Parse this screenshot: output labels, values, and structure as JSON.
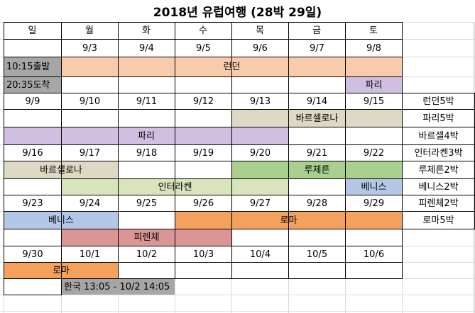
{
  "title": "2018년 유럽여행 (28박 29일)",
  "weekdays": [
    "일",
    "월",
    "화",
    "수",
    "목",
    "금",
    "토"
  ],
  "colors": {
    "arrival": "#a6a6a6",
    "london": "#f8cbad",
    "paris": "#d0bfe0",
    "barcelona": "#ddd9c4",
    "interlaken": "#d8e4bc",
    "lucerne": "#a9d08e",
    "venice": "#b4c7e7",
    "florence": "#da9694",
    "rome": "#f4a15d"
  },
  "cells": [
    {
      "row": 2,
      "c1": 1,
      "c2": 1,
      "text": "9/3"
    },
    {
      "row": 2,
      "c1": 2,
      "c2": 2,
      "text": "9/4"
    },
    {
      "row": 2,
      "c1": 3,
      "c2": 3,
      "text": "9/5"
    },
    {
      "row": 2,
      "c1": 4,
      "c2": 4,
      "text": "9/6"
    },
    {
      "row": 2,
      "c1": 5,
      "c2": 5,
      "text": "9/7"
    },
    {
      "row": 2,
      "c1": 6,
      "c2": 6,
      "text": "9/8"
    },
    {
      "row": 3,
      "c1": 0,
      "c2": 0,
      "text": "10:15출발",
      "color": "arrival",
      "align": "left"
    },
    {
      "row": 3,
      "c1": 1,
      "c2": 6,
      "text": "런던",
      "color": "london"
    },
    {
      "row": 4,
      "c1": 0,
      "c2": 0,
      "text": "20:35도착",
      "color": "arrival",
      "align": "left"
    },
    {
      "row": 4,
      "c1": 6,
      "c2": 6,
      "text": "파리",
      "color": "paris"
    },
    {
      "row": 5,
      "c1": 0,
      "c2": 0,
      "text": "9/9"
    },
    {
      "row": 5,
      "c1": 1,
      "c2": 1,
      "text": "9/10"
    },
    {
      "row": 5,
      "c1": 2,
      "c2": 2,
      "text": "9/11"
    },
    {
      "row": 5,
      "c1": 3,
      "c2": 3,
      "text": "9/12"
    },
    {
      "row": 5,
      "c1": 4,
      "c2": 4,
      "text": "9/13"
    },
    {
      "row": 5,
      "c1": 5,
      "c2": 5,
      "text": "9/14"
    },
    {
      "row": 5,
      "c1": 6,
      "c2": 6,
      "text": "9/15"
    },
    {
      "row": 5,
      "c1": 7,
      "c2": 7,
      "text": "런던5박"
    },
    {
      "row": 6,
      "c1": 4,
      "c2": 6,
      "text": "바르셀로나",
      "color": "barcelona"
    },
    {
      "row": 6,
      "c1": 7,
      "c2": 7,
      "text": "파리5박"
    },
    {
      "row": 7,
      "c1": 0,
      "c2": 4,
      "text": "파리",
      "color": "paris"
    },
    {
      "row": 7,
      "c1": 7,
      "c2": 7,
      "text": "바르셀4박"
    },
    {
      "row": 8,
      "c1": 0,
      "c2": 0,
      "text": "9/16"
    },
    {
      "row": 8,
      "c1": 1,
      "c2": 1,
      "text": "9/17"
    },
    {
      "row": 8,
      "c1": 2,
      "c2": 2,
      "text": "9/18"
    },
    {
      "row": 8,
      "c1": 3,
      "c2": 3,
      "text": "9/19"
    },
    {
      "row": 8,
      "c1": 4,
      "c2": 4,
      "text": "9/20"
    },
    {
      "row": 8,
      "c1": 5,
      "c2": 5,
      "text": "9/21"
    },
    {
      "row": 8,
      "c1": 6,
      "c2": 6,
      "text": "9/22"
    },
    {
      "row": 8,
      "c1": 7,
      "c2": 7,
      "text": "인터라켄3박"
    },
    {
      "row": 9,
      "c1": 0,
      "c2": 1,
      "text": "바르셀로나",
      "color": "barcelona"
    },
    {
      "row": 9,
      "c1": 4,
      "c2": 6,
      "text": "루체른",
      "color": "lucerne"
    },
    {
      "row": 9,
      "c1": 7,
      "c2": 7,
      "text": "루체른2박"
    },
    {
      "row": 10,
      "c1": 1,
      "c2": 4,
      "text": "인터라켄",
      "color": "interlaken"
    },
    {
      "row": 10,
      "c1": 6,
      "c2": 6,
      "text": "베니스",
      "color": "venice"
    },
    {
      "row": 10,
      "c1": 7,
      "c2": 7,
      "text": "베니스2박"
    },
    {
      "row": 11,
      "c1": 0,
      "c2": 0,
      "text": "9/23"
    },
    {
      "row": 11,
      "c1": 1,
      "c2": 1,
      "text": "9/24"
    },
    {
      "row": 11,
      "c1": 2,
      "c2": 2,
      "text": "9/25"
    },
    {
      "row": 11,
      "c1": 3,
      "c2": 3,
      "text": "9/26"
    },
    {
      "row": 11,
      "c1": 4,
      "c2": 4,
      "text": "9/27"
    },
    {
      "row": 11,
      "c1": 5,
      "c2": 5,
      "text": "9/28"
    },
    {
      "row": 11,
      "c1": 6,
      "c2": 6,
      "text": "9/29"
    },
    {
      "row": 11,
      "c1": 7,
      "c2": 7,
      "text": "피렌체2박"
    },
    {
      "row": 12,
      "c1": 0,
      "c2": 1,
      "text": "베니스",
      "color": "venice"
    },
    {
      "row": 12,
      "c1": 3,
      "c2": 6,
      "text": "로마",
      "color": "rome"
    },
    {
      "row": 12,
      "c1": 7,
      "c2": 7,
      "text": "로마5박"
    },
    {
      "row": 13,
      "c1": 1,
      "c2": 3,
      "text": "피렌체",
      "color": "florence"
    },
    {
      "row": 14,
      "c1": 0,
      "c2": 0,
      "text": "9/30"
    },
    {
      "row": 14,
      "c1": 1,
      "c2": 1,
      "text": "10/1"
    },
    {
      "row": 14,
      "c1": 2,
      "c2": 2,
      "text": "10/2"
    },
    {
      "row": 14,
      "c1": 3,
      "c2": 3,
      "text": "10/3"
    },
    {
      "row": 14,
      "c1": 4,
      "c2": 4,
      "text": "10/4"
    },
    {
      "row": 14,
      "c1": 5,
      "c2": 5,
      "text": "10/5"
    },
    {
      "row": 14,
      "c1": 6,
      "c2": 6,
      "text": "10/6"
    },
    {
      "row": 15,
      "c1": 0,
      "c2": 1,
      "text": "로마",
      "color": "rome"
    },
    {
      "row": 16,
      "c1": 1,
      "c2": 2,
      "text": "한국 13:05 - 10/2 14:05",
      "color": "arrival",
      "align": "left"
    }
  ]
}
